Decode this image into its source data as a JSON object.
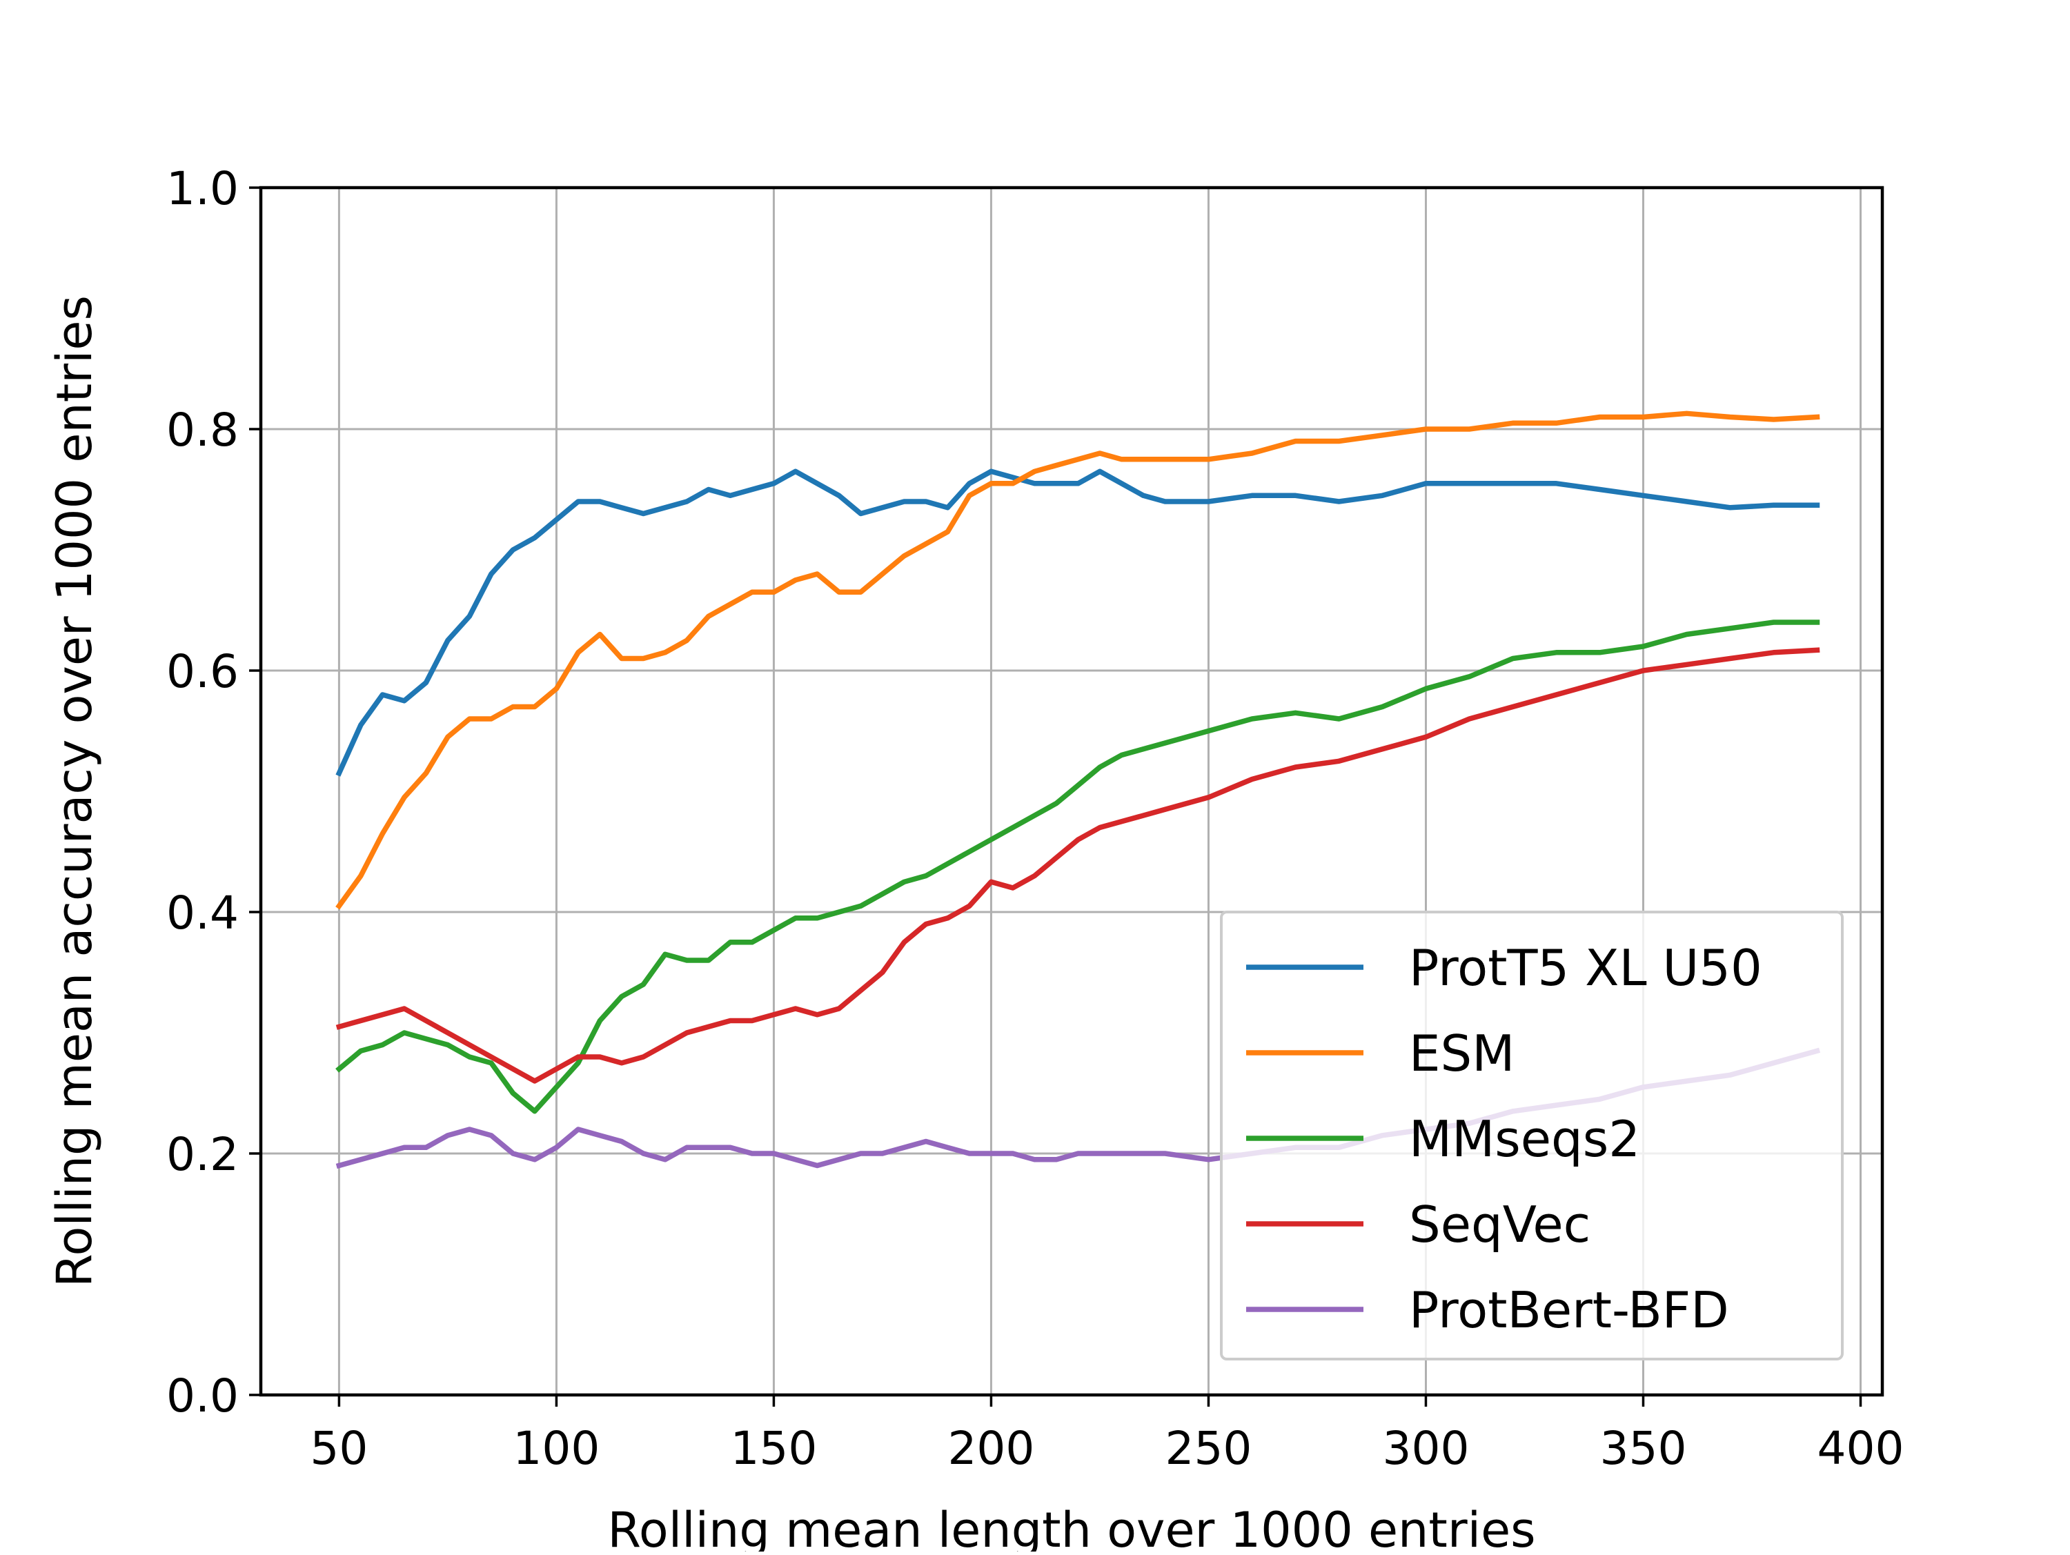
{
  "chart_data": {
    "type": "line",
    "title": "",
    "xlabel": "Rolling mean length over 1000 entries",
    "ylabel": "Rolling mean accuracy over 1000 entries",
    "xlim": [
      32,
      405
    ],
    "ylim": [
      0.0,
      1.0
    ],
    "xticks": [
      "50",
      "100",
      "150",
      "200",
      "250",
      "300",
      "350",
      "400"
    ],
    "yticks": [
      "0.0",
      "0.2",
      "0.4",
      "0.6",
      "0.8",
      "1.0"
    ],
    "grid": true,
    "legend_position": "lower-right",
    "series": [
      {
        "name": "ProtT5 XL U50",
        "color": "#1f77b4",
        "x": [
          50,
          55,
          60,
          65,
          70,
          75,
          80,
          85,
          90,
          95,
          100,
          105,
          110,
          115,
          120,
          125,
          130,
          135,
          140,
          145,
          150,
          155,
          160,
          165,
          170,
          175,
          180,
          185,
          190,
          195,
          200,
          205,
          210,
          215,
          220,
          225,
          230,
          235,
          240,
          250,
          260,
          270,
          280,
          290,
          300,
          310,
          320,
          330,
          340,
          350,
          360,
          370,
          380,
          390
        ],
        "y": [
          0.515,
          0.555,
          0.58,
          0.575,
          0.59,
          0.625,
          0.645,
          0.68,
          0.7,
          0.71,
          0.725,
          0.74,
          0.74,
          0.735,
          0.73,
          0.735,
          0.74,
          0.75,
          0.745,
          0.75,
          0.755,
          0.765,
          0.755,
          0.745,
          0.73,
          0.735,
          0.74,
          0.74,
          0.735,
          0.755,
          0.765,
          0.76,
          0.755,
          0.755,
          0.755,
          0.765,
          0.755,
          0.745,
          0.74,
          0.74,
          0.745,
          0.745,
          0.74,
          0.745,
          0.755,
          0.755,
          0.755,
          0.755,
          0.75,
          0.745,
          0.74,
          0.735,
          0.737,
          0.737
        ]
      },
      {
        "name": "ESM",
        "color": "#ff7f0e",
        "x": [
          50,
          55,
          60,
          65,
          70,
          75,
          80,
          85,
          90,
          95,
          100,
          105,
          110,
          115,
          120,
          125,
          130,
          135,
          140,
          145,
          150,
          155,
          160,
          165,
          170,
          175,
          180,
          185,
          190,
          195,
          200,
          205,
          210,
          215,
          220,
          225,
          230,
          240,
          250,
          260,
          270,
          280,
          290,
          300,
          310,
          320,
          330,
          340,
          350,
          360,
          370,
          380,
          390
        ],
        "y": [
          0.405,
          0.43,
          0.465,
          0.495,
          0.515,
          0.545,
          0.56,
          0.56,
          0.57,
          0.57,
          0.585,
          0.615,
          0.63,
          0.61,
          0.61,
          0.615,
          0.625,
          0.645,
          0.655,
          0.665,
          0.665,
          0.675,
          0.68,
          0.665,
          0.665,
          0.68,
          0.695,
          0.705,
          0.715,
          0.745,
          0.755,
          0.755,
          0.765,
          0.77,
          0.775,
          0.78,
          0.775,
          0.775,
          0.775,
          0.78,
          0.79,
          0.79,
          0.795,
          0.8,
          0.8,
          0.805,
          0.805,
          0.81,
          0.81,
          0.813,
          0.81,
          0.808,
          0.81
        ]
      },
      {
        "name": "MMseqs2",
        "color": "#2ca02c",
        "x": [
          50,
          55,
          60,
          65,
          70,
          75,
          80,
          85,
          90,
          95,
          100,
          105,
          110,
          115,
          120,
          125,
          130,
          135,
          140,
          145,
          150,
          155,
          160,
          165,
          170,
          175,
          180,
          185,
          190,
          195,
          200,
          205,
          210,
          215,
          220,
          225,
          230,
          240,
          250,
          260,
          270,
          280,
          290,
          300,
          310,
          320,
          330,
          340,
          350,
          360,
          370,
          380,
          390
        ],
        "y": [
          0.27,
          0.285,
          0.29,
          0.3,
          0.295,
          0.29,
          0.28,
          0.275,
          0.25,
          0.235,
          0.255,
          0.275,
          0.31,
          0.33,
          0.34,
          0.365,
          0.36,
          0.36,
          0.375,
          0.375,
          0.385,
          0.395,
          0.395,
          0.4,
          0.405,
          0.415,
          0.425,
          0.43,
          0.44,
          0.45,
          0.46,
          0.47,
          0.48,
          0.49,
          0.505,
          0.52,
          0.53,
          0.54,
          0.55,
          0.56,
          0.565,
          0.56,
          0.57,
          0.585,
          0.595,
          0.61,
          0.615,
          0.615,
          0.62,
          0.63,
          0.635,
          0.64,
          0.64
        ]
      },
      {
        "name": "SeqVec",
        "color": "#d62728",
        "x": [
          50,
          55,
          60,
          65,
          70,
          75,
          80,
          85,
          90,
          95,
          100,
          105,
          110,
          115,
          120,
          125,
          130,
          135,
          140,
          145,
          150,
          155,
          160,
          165,
          170,
          175,
          180,
          185,
          190,
          195,
          200,
          205,
          210,
          215,
          220,
          225,
          230,
          240,
          250,
          260,
          270,
          280,
          290,
          300,
          310,
          320,
          330,
          340,
          350,
          360,
          370,
          380,
          390
        ],
        "y": [
          0.305,
          0.31,
          0.315,
          0.32,
          0.31,
          0.3,
          0.29,
          0.28,
          0.27,
          0.26,
          0.27,
          0.28,
          0.28,
          0.275,
          0.28,
          0.29,
          0.3,
          0.305,
          0.31,
          0.31,
          0.315,
          0.32,
          0.315,
          0.32,
          0.335,
          0.35,
          0.375,
          0.39,
          0.395,
          0.405,
          0.425,
          0.42,
          0.43,
          0.445,
          0.46,
          0.47,
          0.475,
          0.485,
          0.495,
          0.51,
          0.52,
          0.525,
          0.535,
          0.545,
          0.56,
          0.57,
          0.58,
          0.59,
          0.6,
          0.605,
          0.61,
          0.615,
          0.617
        ]
      },
      {
        "name": "ProtBert-BFD",
        "color": "#9467bd",
        "x": [
          50,
          55,
          60,
          65,
          70,
          75,
          80,
          85,
          90,
          95,
          100,
          105,
          110,
          115,
          120,
          125,
          130,
          135,
          140,
          145,
          150,
          155,
          160,
          165,
          170,
          175,
          180,
          185,
          190,
          195,
          200,
          205,
          210,
          215,
          220,
          225,
          230,
          240,
          250,
          260,
          270,
          280,
          290,
          300,
          310,
          320,
          330,
          340,
          350,
          360,
          370,
          380,
          390
        ],
        "y": [
          0.19,
          0.195,
          0.2,
          0.205,
          0.205,
          0.215,
          0.22,
          0.215,
          0.2,
          0.195,
          0.205,
          0.22,
          0.215,
          0.21,
          0.2,
          0.195,
          0.205,
          0.205,
          0.205,
          0.2,
          0.2,
          0.195,
          0.19,
          0.195,
          0.2,
          0.2,
          0.205,
          0.21,
          0.205,
          0.2,
          0.2,
          0.2,
          0.195,
          0.195,
          0.2,
          0.2,
          0.2,
          0.2,
          0.195,
          0.2,
          0.205,
          0.205,
          0.215,
          0.22,
          0.225,
          0.235,
          0.24,
          0.245,
          0.255,
          0.26,
          0.265,
          0.275,
          0.285
        ]
      }
    ]
  }
}
